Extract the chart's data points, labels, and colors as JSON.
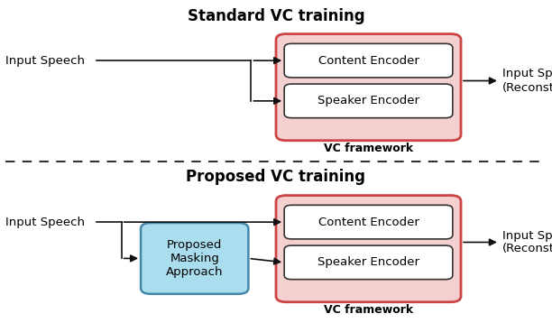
{
  "title_top": "Standard VC training",
  "title_bottom": "Proposed VC training",
  "input_speech_label": "Input Speech",
  "output_speech_label": "Input Speech\n(Reconstructed)",
  "content_encoder_label": "Content Encoder",
  "speaker_encoder_label": "Speaker Encoder",
  "vc_framework_label": "VC framework",
  "proposed_masking_label": "Proposed\nMasking\nApproach",
  "bg_color": "#ffffff",
  "vc_box_fill": "#f5d0d0",
  "vc_box_edge": "#cc4444",
  "encoder_box_fill": "#ffffff",
  "encoder_box_edge": "#333333",
  "proposed_box_fill": "#aaddee",
  "proposed_box_edge": "#4488aa",
  "dashed_line_color": "#333333",
  "arrow_color": "#111111",
  "title_fontsize": 12,
  "label_fontsize": 9.5,
  "small_fontsize": 9
}
